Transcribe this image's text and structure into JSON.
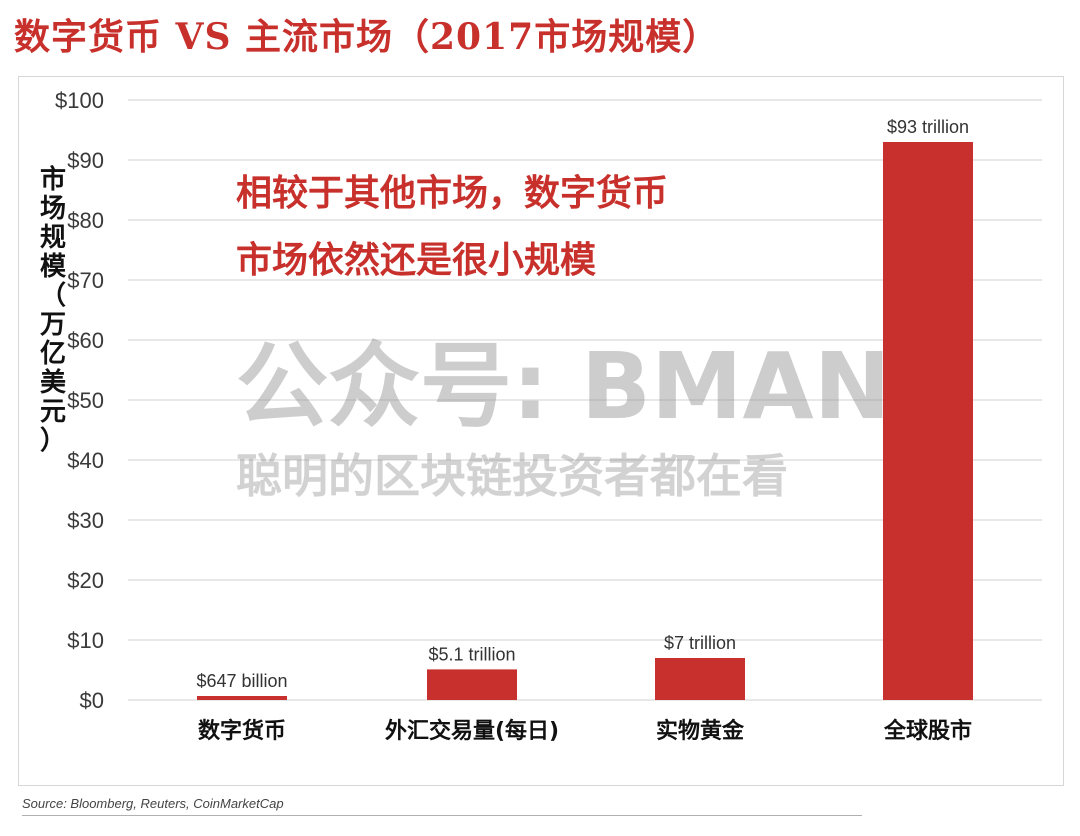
{
  "title": "数字货币 VS 主流市场（2017市场规模）",
  "annotation": [
    "相较于其他市场，数字货币",
    "市场依然还是很小规模"
  ],
  "watermark": {
    "main": "公众号: BMAN",
    "sub": "聪明的区块链投资者都在看"
  },
  "source": "Source:  Bloomberg, Reuters, CoinMarketCap",
  "chart_data": {
    "type": "bar",
    "categories": [
      "数字货币",
      "外汇交易量(每日)",
      "实物黄金",
      "全球股市"
    ],
    "values": [
      0.647,
      5.1,
      7,
      93
    ],
    "data_labels": [
      "$647 billion",
      "$5.1 trillion",
      "$7 trillion",
      "$93 trillion"
    ],
    "ylabel": "市场规模（万亿美元）",
    "ylim": [
      0,
      100
    ],
    "yticks": [
      0,
      10,
      20,
      30,
      40,
      50,
      60,
      70,
      80,
      90,
      100
    ],
    "ytick_labels": [
      "$0",
      "$10",
      "$20",
      "$30",
      "$40",
      "$50",
      "$60",
      "$70",
      "$80",
      "$90",
      "$100"
    ],
    "grid": true,
    "bar_color": "#c7302c",
    "annotation_color": "#c8302c"
  }
}
